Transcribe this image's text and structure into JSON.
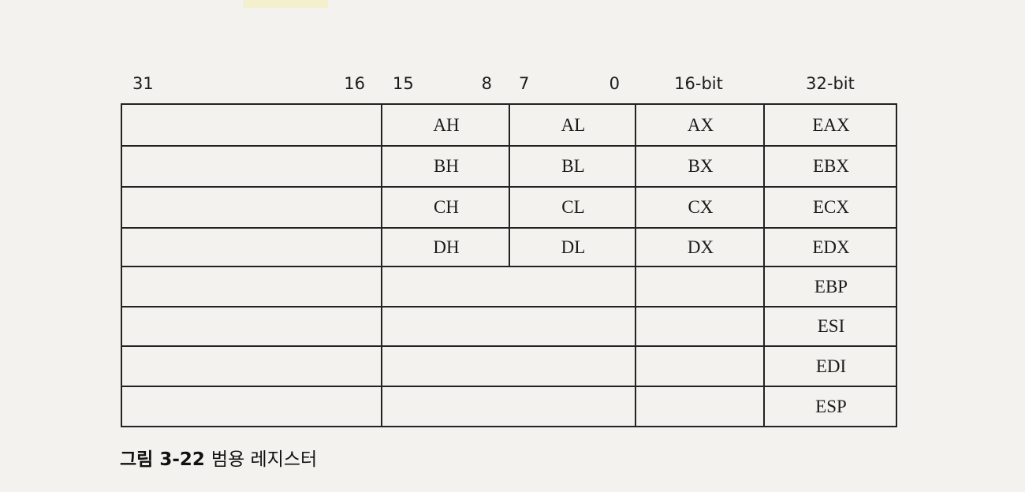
{
  "bit_labels": {
    "b31": "31",
    "b16": "16",
    "b15": "15",
    "b8": "8",
    "b7": "7",
    "b0": "0",
    "col16": "16-bit",
    "col32": "32-bit"
  },
  "rows": [
    {
      "high": "AH",
      "low": "AL",
      "r16": "AX",
      "r32": "EAX"
    },
    {
      "high": "BH",
      "low": "BL",
      "r16": "BX",
      "r32": "EBX"
    },
    {
      "high": "CH",
      "low": "CL",
      "r16": "CX",
      "r32": "ECX"
    },
    {
      "high": "DH",
      "low": "DL",
      "r16": "DX",
      "r32": "EDX"
    },
    {
      "high": "",
      "low": "",
      "r16": "",
      "r32": "EBP"
    },
    {
      "high": "",
      "low": "",
      "r16": "",
      "r32": "ESI"
    },
    {
      "high": "",
      "low": "",
      "r16": "",
      "r32": "EDI"
    },
    {
      "high": "",
      "low": "",
      "r16": "",
      "r32": "ESP"
    }
  ],
  "caption": {
    "figure": "그림 3-22",
    "title": "범용 레지스터"
  }
}
